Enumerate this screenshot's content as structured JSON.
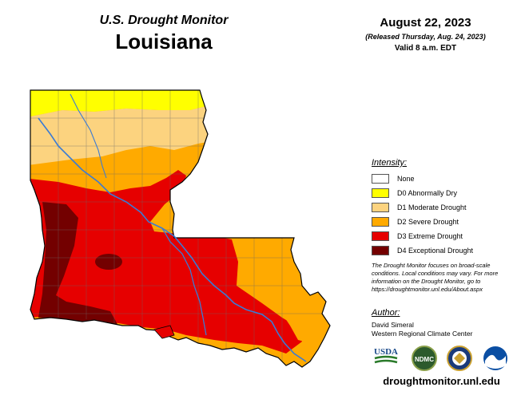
{
  "header": {
    "subtitle": "U.S. Drought Monitor",
    "title": "Louisiana",
    "date": "August 22, 2023",
    "released": "(Released Thursday, Aug. 24, 2023)",
    "valid": "Valid 8 a.m. EDT"
  },
  "legend": {
    "title": "Intensity:",
    "items": [
      {
        "label": "None",
        "color": "#ffffff"
      },
      {
        "label": "D0 Abnormally Dry",
        "color": "#ffff00"
      },
      {
        "label": "D1 Moderate Drought",
        "color": "#fcd37f"
      },
      {
        "label": "D2 Severe Drought",
        "color": "#ffaa00"
      },
      {
        "label": "D3 Extreme Drought",
        "color": "#e60000"
      },
      {
        "label": "D4 Exceptional Drought",
        "color": "#730000"
      }
    ]
  },
  "note": "The Drought Monitor focuses on broad-scale conditions. Local conditions may vary. For more information on the Drought Monitor, go to https://droughtmonitor.unl.edu/About.aspx",
  "author": {
    "title": "Author:",
    "name": "David Simeral",
    "org": "Western Regional Climate Center"
  },
  "logos": {
    "usda": "USDA",
    "ndmc": "NDMC"
  },
  "url": "droughtmonitor.unl.edu",
  "colors": {
    "river": "#3a7bd5",
    "county_line": "#6b6b6b"
  }
}
